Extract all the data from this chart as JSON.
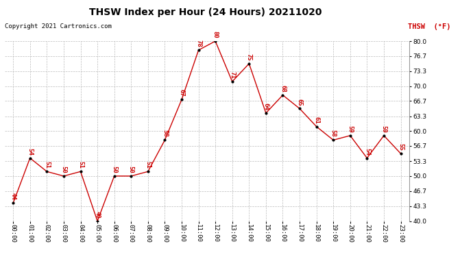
{
  "title": "THSW Index per Hour (24 Hours) 20211020",
  "copyright": "Copyright 2021 Cartronics.com",
  "legend_label": "THSW  (°F)",
  "hours": [
    "00:00",
    "01:00",
    "02:00",
    "03:00",
    "04:00",
    "05:00",
    "06:00",
    "07:00",
    "08:00",
    "09:00",
    "10:00",
    "11:00",
    "12:00",
    "13:00",
    "14:00",
    "15:00",
    "16:00",
    "17:00",
    "18:00",
    "19:00",
    "20:00",
    "21:00",
    "22:00",
    "23:00"
  ],
  "values": [
    44,
    54,
    51,
    50,
    51,
    40,
    50,
    50,
    51,
    58,
    67,
    78,
    80,
    71,
    75,
    64,
    68,
    65,
    61,
    58,
    59,
    54,
    59,
    55
  ],
  "ylim_min": 40.0,
  "ylim_max": 80.0,
  "yticks": [
    40.0,
    43.3,
    46.7,
    50.0,
    53.3,
    56.7,
    60.0,
    63.3,
    66.7,
    70.0,
    73.3,
    76.7,
    80.0
  ],
  "ytick_labels": [
    "40.0",
    "43.3",
    "46.7",
    "50.0",
    "53.3",
    "56.7",
    "60.0",
    "63.3",
    "66.7",
    "70.0",
    "73.3",
    "76.7",
    "80.0"
  ],
  "line_color": "#cc0000",
  "marker_color": "#000000",
  "label_color": "#cc0000",
  "bg_color": "#ffffff",
  "grid_color": "#bbbbbb",
  "title_color": "#000000",
  "copyright_color": "#000000",
  "legend_color": "#cc0000"
}
